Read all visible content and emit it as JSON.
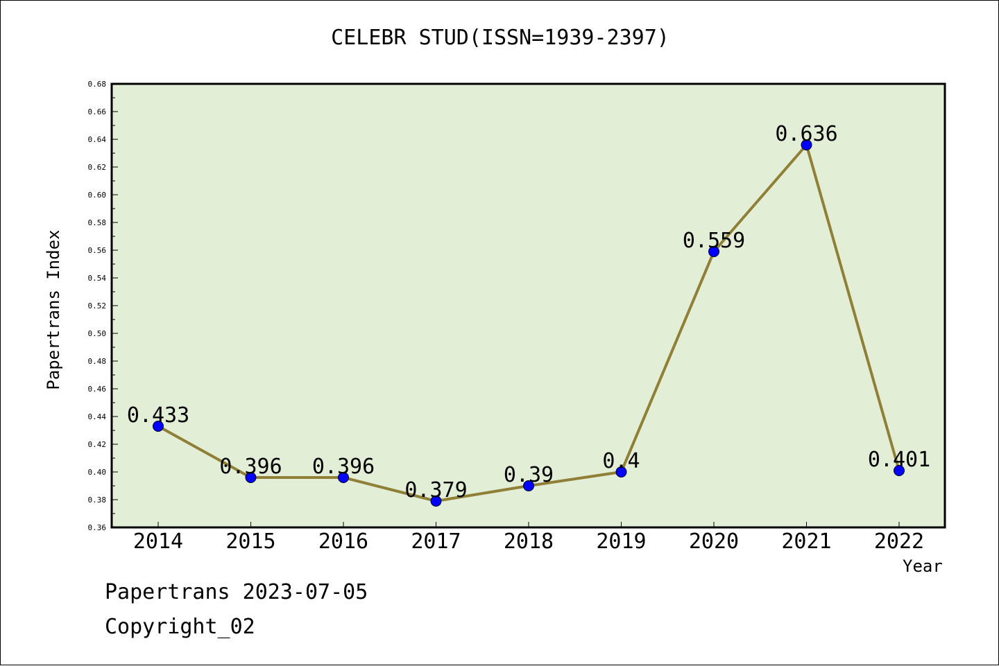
{
  "chart_data": {
    "type": "line",
    "title": "CELEBR STUD(ISSN=1939-2397)",
    "xlabel": "Year",
    "ylabel": "Papertrans Index",
    "categories": [
      "2014",
      "2015",
      "2016",
      "2017",
      "2018",
      "2019",
      "2020",
      "2021",
      "2022"
    ],
    "series": [
      {
        "values": [
          0.433,
          0.396,
          0.396,
          0.379,
          0.39,
          0.4,
          0.559,
          0.636,
          0.401
        ]
      }
    ],
    "data_labels": [
      "0.433",
      "0.396",
      "0.396",
      "0.379",
      "0.39",
      "0.4",
      "0.559",
      "0.636",
      "0.401"
    ],
    "ylim": [
      0.36,
      0.68
    ],
    "yticks": [
      "0.36",
      "0.38",
      "0.40",
      "0.42",
      "0.44",
      "0.46",
      "0.48",
      "0.50",
      "0.52",
      "0.54",
      "0.56",
      "0.58",
      "0.60",
      "0.62",
      "0.64",
      "0.66",
      "0.68"
    ],
    "grid": false,
    "colors": {
      "plot_background": "#e2efd6",
      "line": "#8f7f37",
      "marker": "#0000ff"
    }
  },
  "footer": {
    "date_line": "Papertrans 2023-07-05",
    "copyright": "Copyright_02"
  }
}
